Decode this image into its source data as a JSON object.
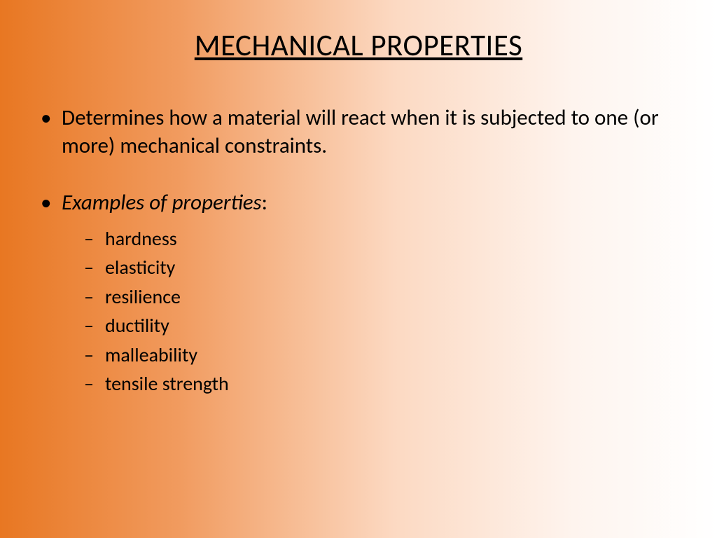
{
  "slide": {
    "title": "MECHANICAL PROPERTIES",
    "bullets": {
      "intro": "Determines how a material will react when it is subjected to one (or more) mechanical constraints.",
      "examples_label": "Examples of properties",
      "examples_colon": ":",
      "examples": [
        "hardness",
        "elasticity",
        "resilience",
        "ductility",
        "malleability",
        " tensile strength"
      ]
    }
  },
  "style": {
    "background_gradient_start": "#e87722",
    "background_gradient_end": "#ffffff",
    "text_color": "#000000",
    "title_fontsize": 43,
    "body_fontsize": 31,
    "sub_fontsize": 28,
    "font_family": "Calibri"
  }
}
